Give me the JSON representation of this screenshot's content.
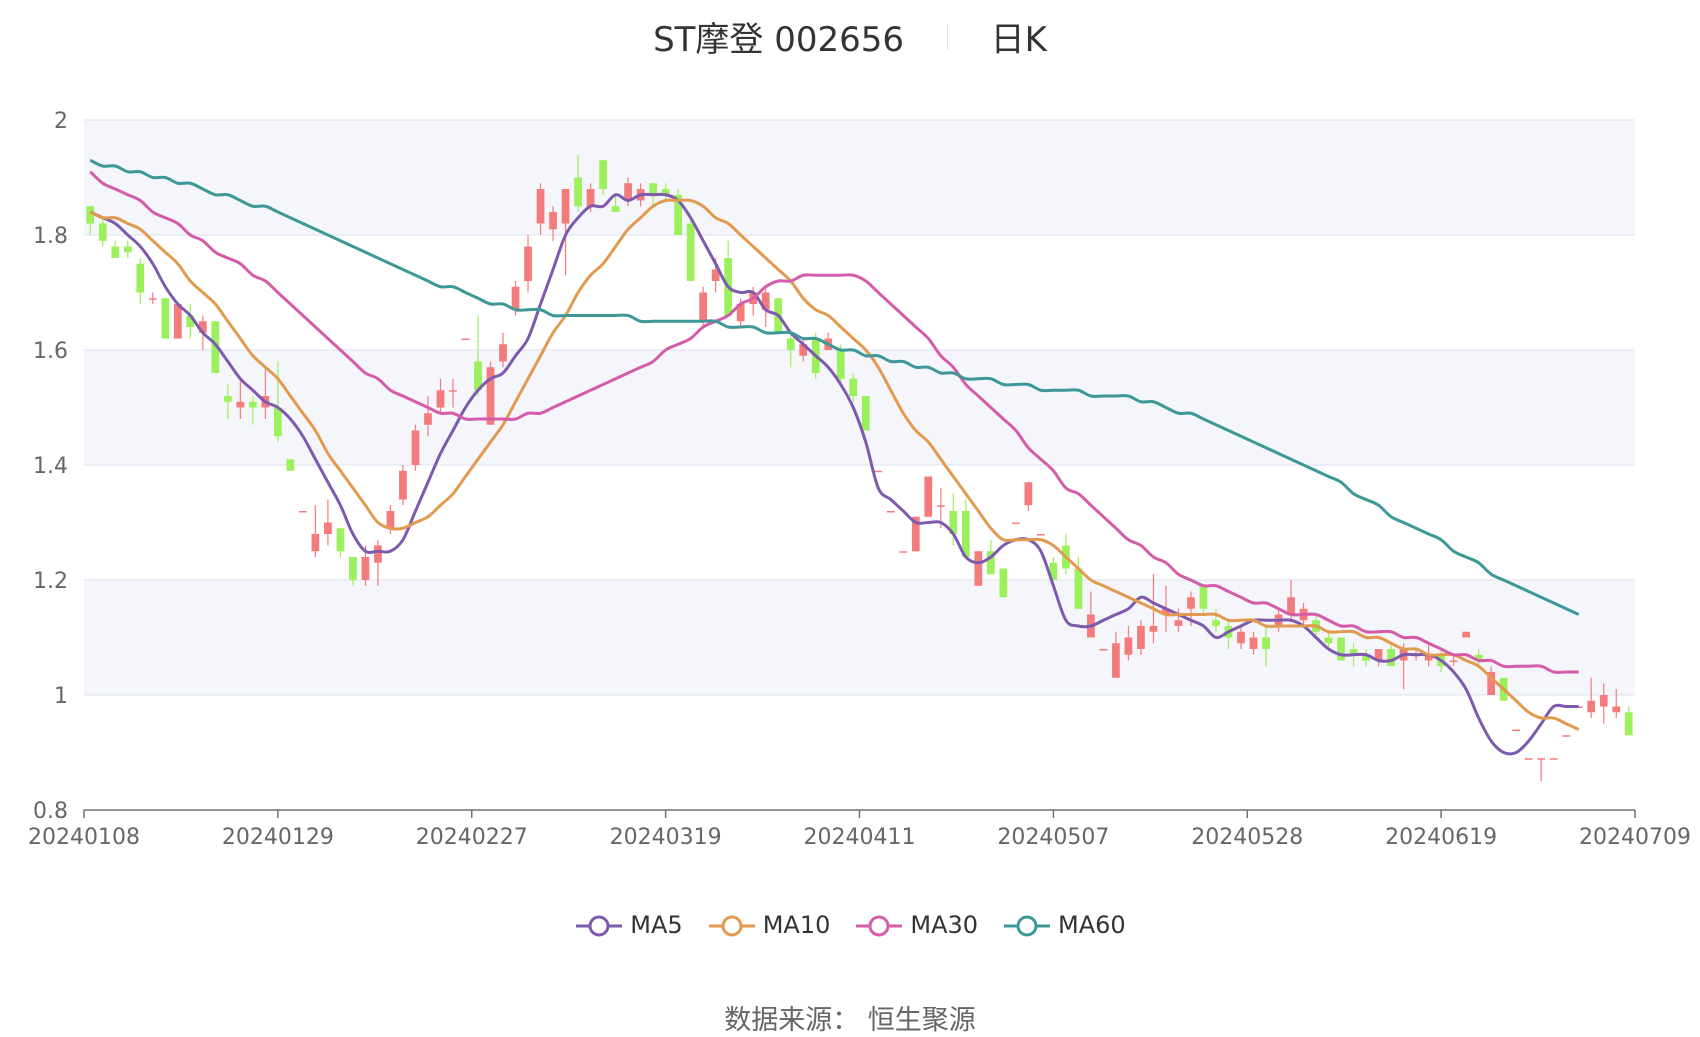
{
  "title": {
    "stock": "ST摩登 002656",
    "period": "日K"
  },
  "source": "数据来源： 恒生聚源",
  "colors": {
    "up": "#f47b7b",
    "down": "#9cf05c",
    "MA5": "#7e5aae",
    "MA10": "#e19a4f",
    "MA30": "#d45ca8",
    "MA60": "#3d9897",
    "band": "#f5f6fb",
    "grid": "#dde1f0"
  },
  "chart_data": {
    "type": "candlestick",
    "ylim": [
      0.8,
      2
    ],
    "yticks": [
      0.8,
      1,
      1.2,
      1.4,
      1.6,
      1.8,
      2
    ],
    "ytick_labels": [
      "0.8",
      "1",
      "1.2",
      "1.4",
      "1.6",
      "1.8",
      "2"
    ],
    "xticks": [
      "20240108",
      "20240129",
      "20240227",
      "20240319",
      "20240411",
      "20240507",
      "20240528",
      "20240619",
      "20240709"
    ],
    "legend": [
      "MA5",
      "MA10",
      "MA30",
      "MA60"
    ],
    "legend_position": "bottom",
    "candles": [
      [
        1.85,
        1.82,
        1.85,
        1.8
      ],
      [
        1.82,
        1.79,
        1.83,
        1.78
      ],
      [
        1.78,
        1.76,
        1.79,
        1.76
      ],
      [
        1.78,
        1.77,
        1.79,
        1.76
      ],
      [
        1.75,
        1.7,
        1.76,
        1.68
      ],
      [
        1.69,
        1.69,
        1.7,
        1.68
      ],
      [
        1.69,
        1.62,
        1.69,
        1.62
      ],
      [
        1.62,
        1.68,
        1.68,
        1.62
      ],
      [
        1.66,
        1.64,
        1.68,
        1.62
      ],
      [
        1.63,
        1.65,
        1.66,
        1.6
      ],
      [
        1.65,
        1.56,
        1.65,
        1.56
      ],
      [
        1.52,
        1.51,
        1.54,
        1.48
      ],
      [
        1.5,
        1.51,
        1.55,
        1.48
      ],
      [
        1.51,
        1.5,
        1.52,
        1.47
      ],
      [
        1.5,
        1.52,
        1.57,
        1.48
      ],
      [
        1.5,
        1.45,
        1.58,
        1.44
      ],
      [
        1.41,
        1.39,
        1.41,
        1.39
      ],
      [
        1.32,
        1.32,
        1.32,
        1.32
      ],
      [
        1.25,
        1.28,
        1.33,
        1.24
      ],
      [
        1.28,
        1.3,
        1.34,
        1.26
      ],
      [
        1.29,
        1.25,
        1.29,
        1.24
      ],
      [
        1.24,
        1.2,
        1.24,
        1.19
      ],
      [
        1.2,
        1.24,
        1.26,
        1.19
      ],
      [
        1.23,
        1.26,
        1.27,
        1.19
      ],
      [
        1.29,
        1.32,
        1.33,
        1.28
      ],
      [
        1.34,
        1.39,
        1.4,
        1.33
      ],
      [
        1.4,
        1.46,
        1.47,
        1.39
      ],
      [
        1.47,
        1.49,
        1.52,
        1.45
      ],
      [
        1.5,
        1.53,
        1.55,
        1.49
      ],
      [
        1.53,
        1.53,
        1.55,
        1.5
      ],
      [
        1.62,
        1.62,
        1.62,
        1.62
      ],
      [
        1.58,
        1.53,
        1.66,
        1.52
      ],
      [
        1.47,
        1.57,
        1.58,
        1.47
      ],
      [
        1.58,
        1.61,
        1.63,
        1.57
      ],
      [
        1.67,
        1.71,
        1.72,
        1.66
      ],
      [
        1.72,
        1.78,
        1.8,
        1.7
      ],
      [
        1.82,
        1.88,
        1.89,
        1.8
      ],
      [
        1.81,
        1.84,
        1.85,
        1.79
      ],
      [
        1.82,
        1.88,
        1.88,
        1.73
      ],
      [
        1.9,
        1.85,
        1.94,
        1.84
      ],
      [
        1.85,
        1.88,
        1.89,
        1.84
      ],
      [
        1.93,
        1.88,
        1.93,
        1.87
      ],
      [
        1.85,
        1.84,
        1.87,
        1.84
      ],
      [
        1.86,
        1.89,
        1.9,
        1.85
      ],
      [
        1.86,
        1.88,
        1.89,
        1.85
      ],
      [
        1.89,
        1.87,
        1.89,
        1.85
      ],
      [
        1.88,
        1.87,
        1.89,
        1.86
      ],
      [
        1.87,
        1.8,
        1.88,
        1.8
      ],
      [
        1.82,
        1.72,
        1.83,
        1.72
      ],
      [
        1.65,
        1.7,
        1.71,
        1.64
      ],
      [
        1.72,
        1.74,
        1.76,
        1.7
      ],
      [
        1.76,
        1.66,
        1.79,
        1.66
      ],
      [
        1.65,
        1.68,
        1.69,
        1.64
      ],
      [
        1.68,
        1.7,
        1.71,
        1.66
      ],
      [
        1.67,
        1.7,
        1.71,
        1.64
      ],
      [
        1.69,
        1.63,
        1.69,
        1.63
      ],
      [
        1.62,
        1.6,
        1.63,
        1.57
      ],
      [
        1.59,
        1.61,
        1.62,
        1.58
      ],
      [
        1.62,
        1.56,
        1.63,
        1.55
      ],
      [
        1.6,
        1.62,
        1.63,
        1.6
      ],
      [
        1.6,
        1.55,
        1.61,
        1.54
      ],
      [
        1.55,
        1.52,
        1.56,
        1.51
      ],
      [
        1.52,
        1.46,
        1.52,
        1.46
      ],
      [
        1.39,
        1.39,
        1.39,
        1.39
      ],
      [
        1.32,
        1.32,
        1.32,
        1.32
      ],
      [
        1.25,
        1.25,
        1.25,
        1.25
      ],
      [
        1.25,
        1.31,
        1.31,
        1.25
      ],
      [
        1.31,
        1.38,
        1.38,
        1.31
      ],
      [
        1.33,
        1.33,
        1.36,
        1.29
      ],
      [
        1.32,
        1.28,
        1.35,
        1.26
      ],
      [
        1.32,
        1.24,
        1.34,
        1.24
      ],
      [
        1.19,
        1.25,
        1.25,
        1.19
      ],
      [
        1.25,
        1.21,
        1.27,
        1.21
      ],
      [
        1.22,
        1.17,
        1.22,
        1.17
      ],
      [
        1.3,
        1.3,
        1.3,
        1.3
      ],
      [
        1.33,
        1.37,
        1.37,
        1.32
      ],
      [
        1.28,
        1.28,
        1.28,
        1.28
      ],
      [
        1.23,
        1.2,
        1.24,
        1.2
      ],
      [
        1.26,
        1.22,
        1.28,
        1.21
      ],
      [
        1.22,
        1.15,
        1.24,
        1.15
      ],
      [
        1.1,
        1.14,
        1.18,
        1.1
      ],
      [
        1.08,
        1.08,
        1.08,
        1.08
      ],
      [
        1.03,
        1.09,
        1.11,
        1.03
      ],
      [
        1.07,
        1.1,
        1.12,
        1.06
      ],
      [
        1.08,
        1.12,
        1.13,
        1.07
      ],
      [
        1.11,
        1.12,
        1.21,
        1.09
      ],
      [
        1.14,
        1.15,
        1.19,
        1.11
      ],
      [
        1.12,
        1.13,
        1.15,
        1.11
      ],
      [
        1.15,
        1.17,
        1.18,
        1.12
      ],
      [
        1.19,
        1.15,
        1.19,
        1.14
      ],
      [
        1.13,
        1.12,
        1.15,
        1.11
      ],
      [
        1.12,
        1.1,
        1.13,
        1.08
      ],
      [
        1.09,
        1.11,
        1.12,
        1.08
      ],
      [
        1.08,
        1.1,
        1.11,
        1.07
      ],
      [
        1.1,
        1.08,
        1.12,
        1.05
      ],
      [
        1.12,
        1.14,
        1.15,
        1.11
      ],
      [
        1.14,
        1.17,
        1.2,
        1.13
      ],
      [
        1.13,
        1.15,
        1.16,
        1.12
      ],
      [
        1.13,
        1.11,
        1.14,
        1.1
      ],
      [
        1.1,
        1.09,
        1.11,
        1.08
      ],
      [
        1.1,
        1.06,
        1.1,
        1.06
      ],
      [
        1.08,
        1.07,
        1.09,
        1.05
      ],
      [
        1.07,
        1.06,
        1.08,
        1.05
      ],
      [
        1.06,
        1.08,
        1.08,
        1.05
      ],
      [
        1.08,
        1.05,
        1.09,
        1.05
      ],
      [
        1.06,
        1.08,
        1.09,
        1.01
      ],
      [
        1.07,
        1.07,
        1.08,
        1.06
      ],
      [
        1.06,
        1.07,
        1.09,
        1.05
      ],
      [
        1.07,
        1.05,
        1.08,
        1.04
      ],
      [
        1.06,
        1.06,
        1.07,
        1.05
      ],
      [
        1.1,
        1.11,
        1.11,
        1.1
      ],
      [
        1.07,
        1.06,
        1.08,
        1.05
      ],
      [
        1.0,
        1.04,
        1.05,
        1.0
      ],
      [
        1.03,
        0.99,
        1.03,
        0.99
      ],
      [
        0.94,
        0.94,
        0.94,
        0.94
      ],
      [
        0.89,
        0.89,
        0.89,
        0.89
      ],
      [
        0.89,
        0.89,
        0.89,
        0.85
      ],
      [
        0.89,
        0.89,
        0.89,
        0.89
      ],
      [
        0.93,
        0.93,
        0.93,
        0.93
      ],
      [
        0.98,
        0.98,
        0.98,
        0.98
      ],
      [
        0.97,
        0.99,
        1.03,
        0.96
      ],
      [
        0.98,
        1.0,
        1.02,
        0.95
      ],
      [
        0.97,
        0.98,
        1.01,
        0.96
      ],
      [
        0.97,
        0.93,
        0.98,
        0.93
      ]
    ],
    "series": [
      {
        "name": "MA5",
        "values": [
          1.84,
          1.83,
          1.82,
          1.8,
          1.78,
          1.75,
          1.71,
          1.68,
          1.66,
          1.63,
          1.61,
          1.58,
          1.55,
          1.53,
          1.51,
          1.5,
          1.48,
          1.45,
          1.41,
          1.37,
          1.33,
          1.28,
          1.25,
          1.25,
          1.25,
          1.27,
          1.32,
          1.37,
          1.42,
          1.46,
          1.5,
          1.53,
          1.55,
          1.56,
          1.59,
          1.62,
          1.68,
          1.74,
          1.8,
          1.83,
          1.85,
          1.85,
          1.87,
          1.86,
          1.87,
          1.87,
          1.87,
          1.86,
          1.83,
          1.79,
          1.75,
          1.71,
          1.7,
          1.7,
          1.67,
          1.66,
          1.63,
          1.61,
          1.59,
          1.57,
          1.54,
          1.5,
          1.44,
          1.36,
          1.34,
          1.32,
          1.3,
          1.3,
          1.3,
          1.28,
          1.24,
          1.23,
          1.24,
          1.26,
          1.27,
          1.27,
          1.25,
          1.19,
          1.13,
          1.12,
          1.12,
          1.13,
          1.14,
          1.15,
          1.17,
          1.16,
          1.15,
          1.14,
          1.13,
          1.12,
          1.1,
          1.11,
          1.12,
          1.13,
          1.13,
          1.13,
          1.13,
          1.12,
          1.1,
          1.08,
          1.07,
          1.07,
          1.07,
          1.06,
          1.06,
          1.07,
          1.07,
          1.07,
          1.06,
          1.04,
          1.01,
          0.96,
          0.92,
          0.9,
          0.9,
          0.92,
          0.95,
          0.98,
          0.98,
          0.98
        ]
      },
      {
        "name": "MA10",
        "values": [
          1.84,
          1.83,
          1.83,
          1.82,
          1.81,
          1.79,
          1.77,
          1.75,
          1.72,
          1.7,
          1.68,
          1.65,
          1.62,
          1.59,
          1.57,
          1.55,
          1.52,
          1.49,
          1.46,
          1.42,
          1.39,
          1.36,
          1.33,
          1.3,
          1.29,
          1.29,
          1.3,
          1.31,
          1.33,
          1.35,
          1.38,
          1.41,
          1.44,
          1.47,
          1.51,
          1.55,
          1.59,
          1.63,
          1.66,
          1.7,
          1.73,
          1.75,
          1.78,
          1.81,
          1.83,
          1.85,
          1.86,
          1.86,
          1.86,
          1.85,
          1.83,
          1.82,
          1.8,
          1.78,
          1.76,
          1.74,
          1.72,
          1.69,
          1.67,
          1.66,
          1.64,
          1.62,
          1.6,
          1.57,
          1.53,
          1.49,
          1.46,
          1.44,
          1.41,
          1.38,
          1.35,
          1.32,
          1.29,
          1.27,
          1.27,
          1.27,
          1.27,
          1.26,
          1.24,
          1.22,
          1.2,
          1.19,
          1.18,
          1.17,
          1.16,
          1.15,
          1.14,
          1.14,
          1.14,
          1.14,
          1.14,
          1.13,
          1.13,
          1.13,
          1.12,
          1.12,
          1.12,
          1.12,
          1.12,
          1.11,
          1.11,
          1.11,
          1.1,
          1.1,
          1.09,
          1.08,
          1.08,
          1.07,
          1.07,
          1.07,
          1.06,
          1.05,
          1.03,
          1.01,
          0.99,
          0.97,
          0.96,
          0.96,
          0.95,
          0.94
        ]
      },
      {
        "name": "MA30",
        "values": [
          1.91,
          1.89,
          1.88,
          1.87,
          1.86,
          1.84,
          1.83,
          1.82,
          1.8,
          1.79,
          1.77,
          1.76,
          1.75,
          1.73,
          1.72,
          1.7,
          1.68,
          1.66,
          1.64,
          1.62,
          1.6,
          1.58,
          1.56,
          1.55,
          1.53,
          1.52,
          1.51,
          1.5,
          1.49,
          1.49,
          1.48,
          1.48,
          1.48,
          1.48,
          1.48,
          1.49,
          1.49,
          1.5,
          1.51,
          1.52,
          1.53,
          1.54,
          1.55,
          1.56,
          1.57,
          1.58,
          1.6,
          1.61,
          1.62,
          1.64,
          1.65,
          1.66,
          1.68,
          1.69,
          1.71,
          1.72,
          1.72,
          1.73,
          1.73,
          1.73,
          1.73,
          1.73,
          1.72,
          1.7,
          1.68,
          1.66,
          1.64,
          1.62,
          1.59,
          1.57,
          1.54,
          1.52,
          1.5,
          1.48,
          1.46,
          1.43,
          1.41,
          1.39,
          1.36,
          1.35,
          1.33,
          1.31,
          1.29,
          1.27,
          1.26,
          1.24,
          1.23,
          1.21,
          1.2,
          1.19,
          1.19,
          1.18,
          1.17,
          1.16,
          1.16,
          1.15,
          1.14,
          1.14,
          1.14,
          1.13,
          1.12,
          1.12,
          1.11,
          1.11,
          1.11,
          1.1,
          1.1,
          1.09,
          1.08,
          1.07,
          1.07,
          1.06,
          1.06,
          1.05,
          1.05,
          1.05,
          1.05,
          1.04,
          1.04,
          1.04
        ]
      },
      {
        "name": "MA60",
        "values": [
          1.93,
          1.92,
          1.92,
          1.91,
          1.91,
          1.9,
          1.9,
          1.89,
          1.89,
          1.88,
          1.87,
          1.87,
          1.86,
          1.85,
          1.85,
          1.84,
          1.83,
          1.82,
          1.81,
          1.8,
          1.79,
          1.78,
          1.77,
          1.76,
          1.75,
          1.74,
          1.73,
          1.72,
          1.71,
          1.71,
          1.7,
          1.69,
          1.68,
          1.68,
          1.67,
          1.67,
          1.67,
          1.66,
          1.66,
          1.66,
          1.66,
          1.66,
          1.66,
          1.66,
          1.65,
          1.65,
          1.65,
          1.65,
          1.65,
          1.65,
          1.65,
          1.64,
          1.64,
          1.64,
          1.63,
          1.63,
          1.63,
          1.62,
          1.62,
          1.61,
          1.6,
          1.6,
          1.59,
          1.59,
          1.58,
          1.58,
          1.57,
          1.57,
          1.56,
          1.56,
          1.55,
          1.55,
          1.55,
          1.54,
          1.54,
          1.54,
          1.53,
          1.53,
          1.53,
          1.53,
          1.52,
          1.52,
          1.52,
          1.52,
          1.51,
          1.51,
          1.5,
          1.49,
          1.49,
          1.48,
          1.47,
          1.46,
          1.45,
          1.44,
          1.43,
          1.42,
          1.41,
          1.4,
          1.39,
          1.38,
          1.37,
          1.35,
          1.34,
          1.33,
          1.31,
          1.3,
          1.29,
          1.28,
          1.27,
          1.25,
          1.24,
          1.23,
          1.21,
          1.2,
          1.19,
          1.18,
          1.17,
          1.16,
          1.15,
          1.14
        ]
      }
    ]
  }
}
